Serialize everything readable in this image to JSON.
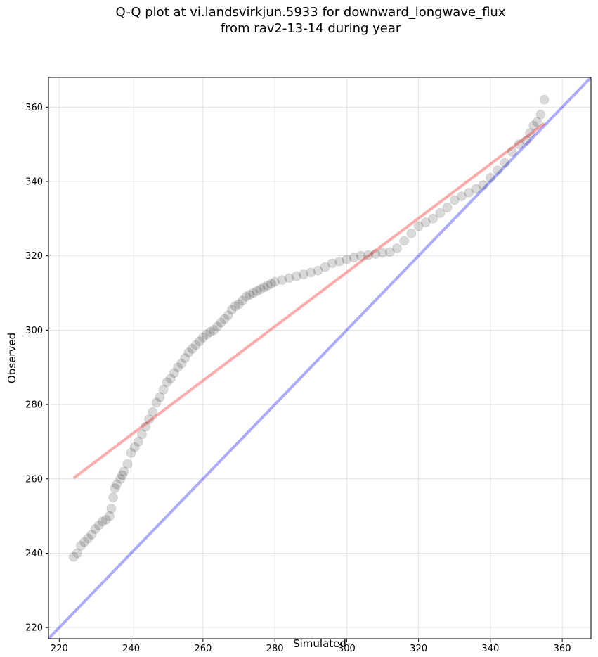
{
  "chart_data": {
    "type": "scatter",
    "title_line1": "Q-Q plot at vi.landsvirkjun.5933 for downward_longwave_flux",
    "title_line2": "from rav2-13-14 during year",
    "xlabel": "Simulated",
    "ylabel": "Observed",
    "xlim": [
      217,
      368
    ],
    "ylim": [
      217,
      368
    ],
    "xticks": [
      220,
      240,
      260,
      280,
      300,
      320,
      340,
      360
    ],
    "yticks": [
      220,
      240,
      260,
      280,
      300,
      320,
      340,
      360
    ],
    "grid": true,
    "series": [
      {
        "marker": "circle",
        "color": "#000000",
        "alpha": 0.15,
        "x": [
          224,
          225,
          226,
          227,
          228,
          229,
          230,
          231,
          232,
          233,
          234,
          234.5,
          235,
          235.5,
          236,
          237,
          237.5,
          238,
          239,
          240,
          241,
          242,
          243,
          244,
          245,
          246,
          247,
          248,
          249,
          250,
          251,
          252,
          253,
          254,
          255,
          256,
          257,
          258,
          259,
          260,
          261,
          262,
          263,
          264,
          265,
          266,
          267,
          268,
          269,
          270,
          271,
          272,
          273,
          274,
          275,
          276,
          277,
          278,
          279,
          280,
          282,
          284,
          286,
          288,
          290,
          292,
          294,
          296,
          298,
          300,
          302,
          304,
          306,
          308,
          310,
          312,
          314,
          316,
          318,
          320,
          322,
          324,
          326,
          328,
          330,
          332,
          334,
          336,
          338,
          340,
          342,
          344,
          346,
          348,
          350,
          351,
          352,
          353,
          354,
          355
        ],
        "y": [
          239,
          240,
          242,
          243,
          244,
          245,
          246.5,
          247.5,
          248.5,
          249,
          250,
          252,
          255,
          257.5,
          258.5,
          260,
          261,
          262,
          264,
          267,
          268.5,
          270,
          272,
          274,
          276,
          278,
          280.5,
          282,
          284,
          286,
          287,
          288.5,
          290,
          291,
          292.5,
          294,
          295,
          296,
          297,
          298,
          298.8,
          299.5,
          300,
          301,
          302,
          303,
          304,
          305.5,
          306.5,
          307,
          308,
          309,
          309.5,
          310,
          310.5,
          311,
          311.5,
          312,
          312.5,
          313,
          313.5,
          314,
          314.5,
          315,
          315.5,
          316,
          317,
          318,
          318.5,
          319,
          319.5,
          320,
          320.2,
          320.5,
          320.8,
          321,
          322,
          324,
          326,
          328,
          329,
          330,
          331.5,
          333,
          335,
          336,
          337,
          338,
          339,
          341,
          343,
          345,
          348,
          350,
          351,
          353,
          355,
          356,
          358,
          362
        ]
      },
      {
        "type": "line",
        "color": "#ff0000",
        "alpha": 0.33,
        "x": [
          224,
          355
        ],
        "y": [
          260.2,
          355.6
        ]
      },
      {
        "type": "line",
        "color": "#0000ff",
        "alpha": 0.33,
        "x": [
          217,
          368
        ],
        "y": [
          217,
          368
        ]
      }
    ]
  }
}
